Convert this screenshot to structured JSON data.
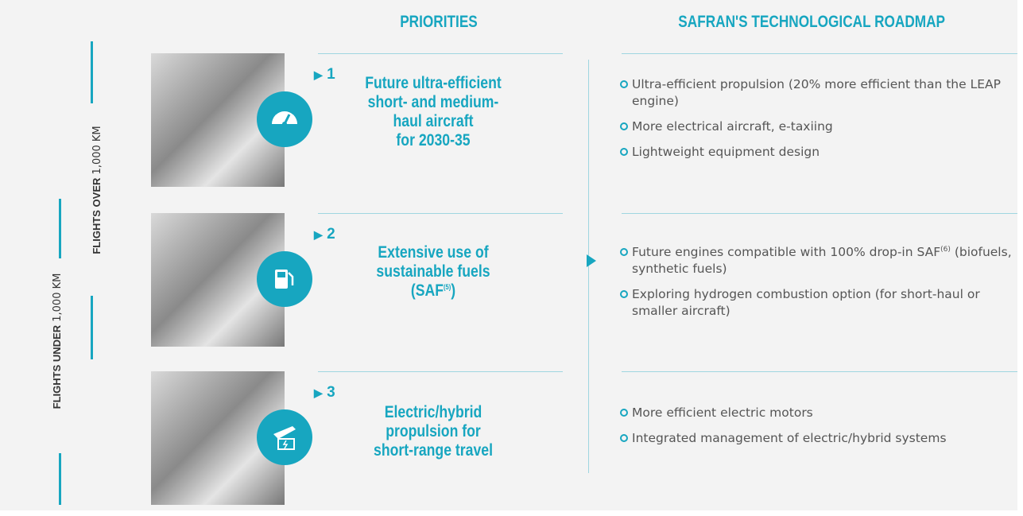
{
  "headers": {
    "priorities": "PRIORITIES",
    "roadmap": "SAFRAN'S TECHNOLOGICAL ROADMAP"
  },
  "side_labels": [
    {
      "bold": "FLIGHTS OVER",
      "light": "1,000 KM"
    },
    {
      "bold": "FLIGHTS UNDER",
      "light": "1,000 KM"
    }
  ],
  "rows": [
    {
      "number": "1",
      "title_lines": [
        "Future ultra-efficient",
        "short- and medium-",
        "haul aircraft",
        "for 2030-35"
      ],
      "bullets": [
        {
          "text": "Ultra-efficient propulsion (20% more efficient than the LEAP engine)"
        },
        {
          "text": "More electrical aircraft, e-taxiing"
        },
        {
          "text": "Lightweight equipment design"
        }
      ]
    },
    {
      "number": "2",
      "title_lines": [
        "Extensive use of",
        "sustainable fuels",
        "(SAF"
      ],
      "title_note": "(5)",
      "title_end": ")",
      "bullets": [
        {
          "text": "Future engines compatible with 100% drop-in SAF",
          "note": "(6)",
          "rest": " (biofuels, synthetic fuels)"
        },
        {
          "text": "Exploring hydrogen combustion option (for short-haul or smaller aircraft)"
        }
      ]
    },
    {
      "number": "3",
      "title_lines": [
        "Electric/hybrid",
        "propulsion for",
        "short-range travel"
      ],
      "bullets": [
        {
          "text": "More efficient electric motors"
        },
        {
          "text": "Integrated management of electric/hybrid systems"
        }
      ]
    }
  ]
}
